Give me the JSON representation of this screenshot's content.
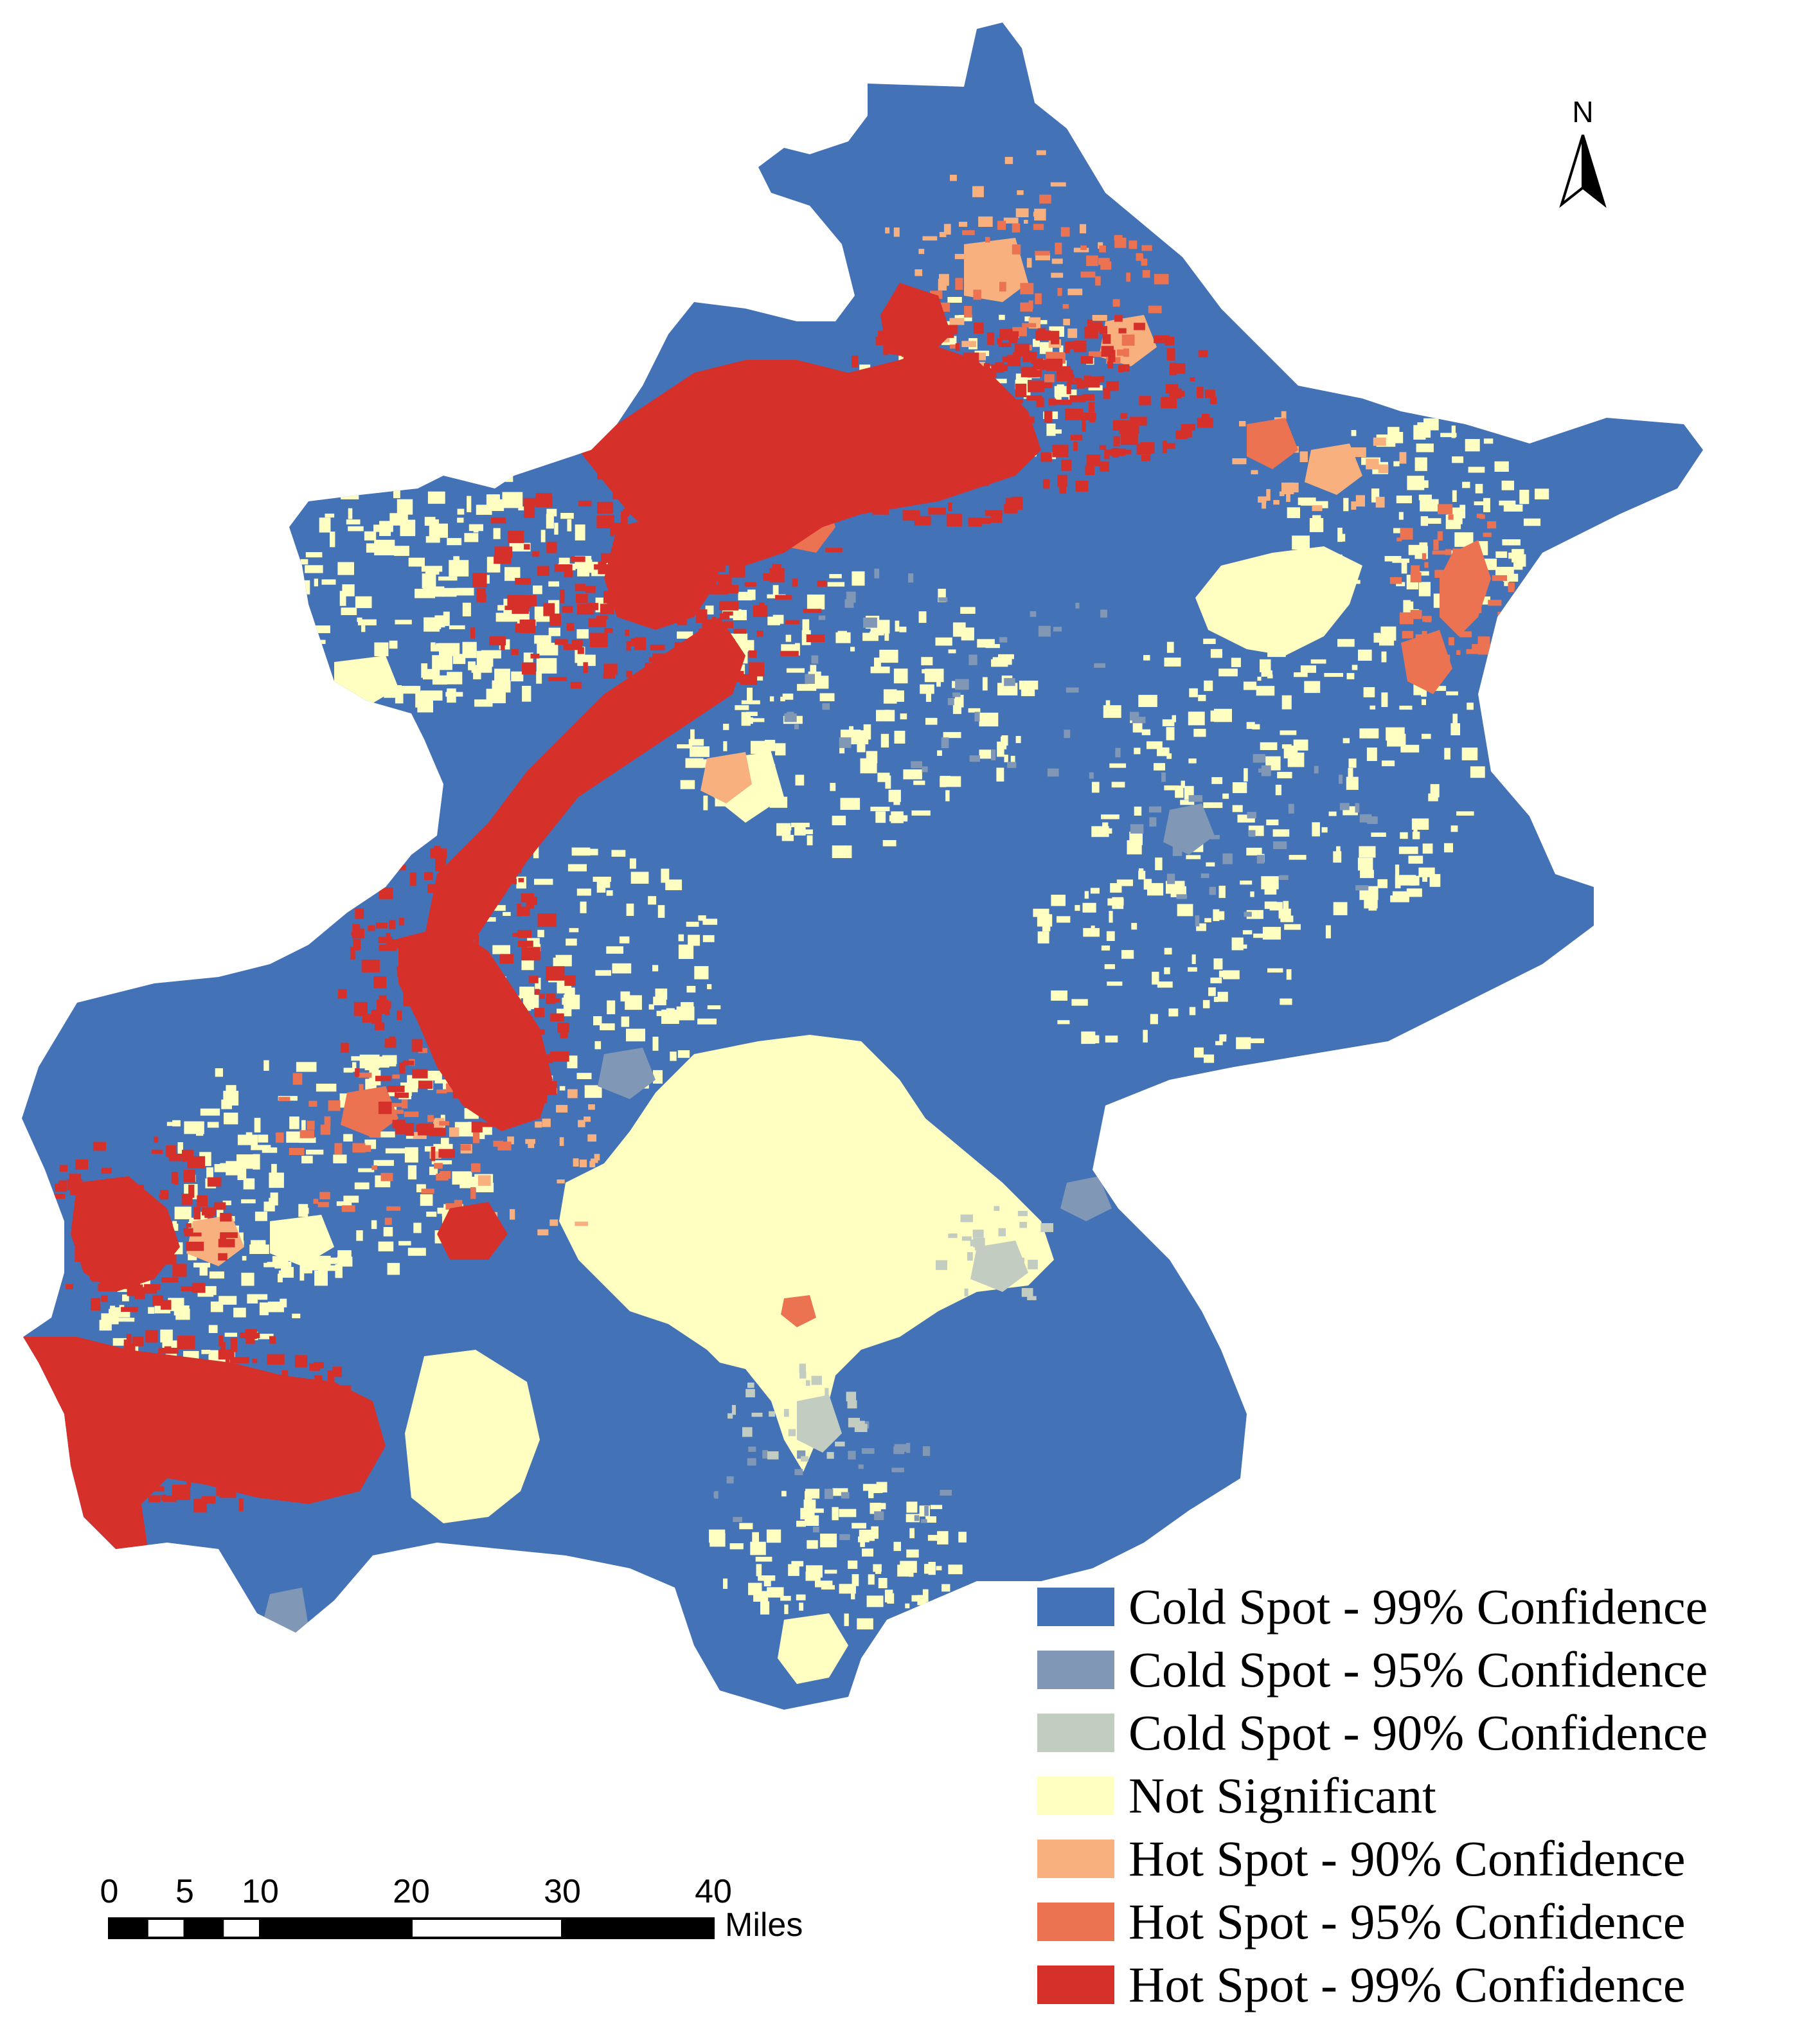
{
  "colors": {
    "cold99": "#4472b6",
    "cold95": "#8097b6",
    "cold90": "#c3ccc0",
    "notsig": "#ffffc2",
    "hot90": "#f7b07e",
    "hot95": "#ec7352",
    "hot99": "#d6302a"
  },
  "legend": {
    "items": [
      {
        "label": "Cold Spot - 99% Confidence",
        "color": "#4472b6"
      },
      {
        "label": "Cold Spot - 95% Confidence",
        "color": "#8097b6"
      },
      {
        "label": "Cold Spot - 90% Confidence",
        "color": "#c3ccc0"
      },
      {
        "label": "Not Significant",
        "color": "#ffffc2"
      },
      {
        "label": "Hot Spot - 90% Confidence",
        "color": "#f7b07e"
      },
      {
        "label": "Hot Spot - 95% Confidence",
        "color": "#ec7352"
      },
      {
        "label": "Hot Spot - 99% Confidence",
        "color": "#d6302a"
      }
    ]
  },
  "scale_bar": {
    "ticks": [
      "0",
      "5",
      "10",
      "20",
      "30",
      "40"
    ],
    "unit": "Miles"
  },
  "north_arrow": {
    "label": "N",
    "icon": "north-arrow-icon"
  }
}
